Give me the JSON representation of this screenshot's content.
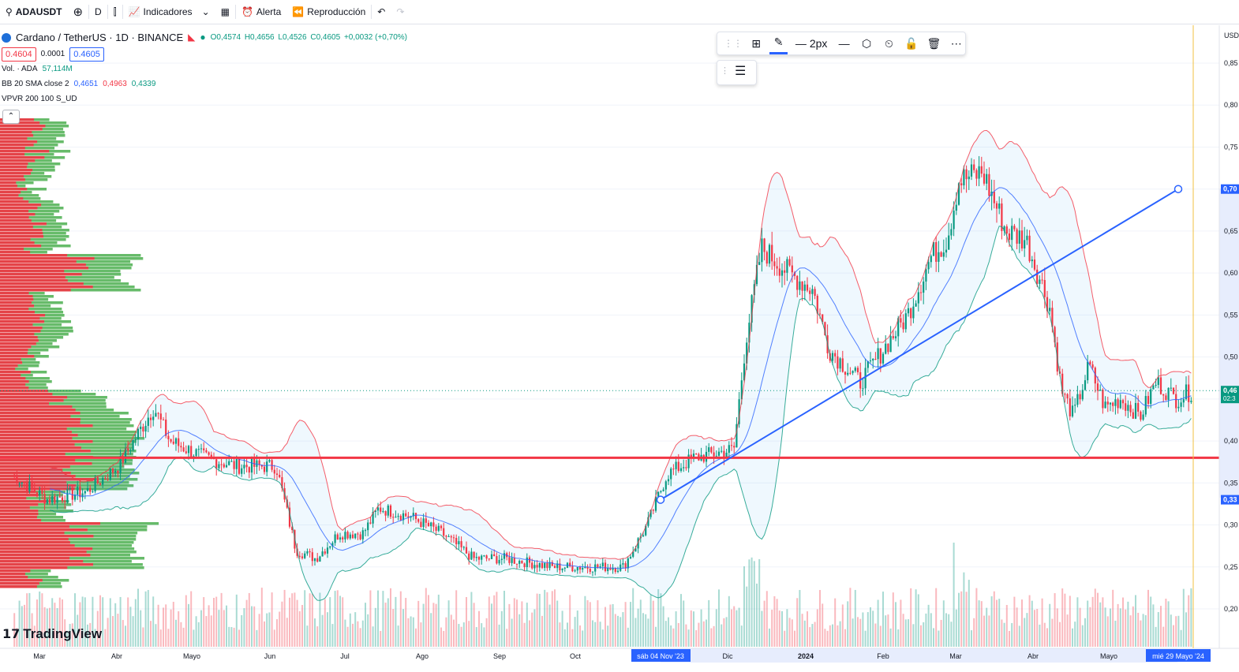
{
  "toolbar": {
    "symbol": "ADAUSDT",
    "interval": "D",
    "indicators": "Indicadores",
    "alert": "Alerta",
    "replay": "Reproducción"
  },
  "legend": {
    "title": "Cardano / TetherUS · 1D · BINANCE",
    "ohlc": {
      "o": "O0,4574",
      "h": "H0,4656",
      "l": "L0,4526",
      "c": "C0,4605",
      "chg": "+0,0032 (+0,70%)"
    },
    "bid": "0.4604",
    "spread": "0.0001",
    "ask": "0.4605",
    "vol_label": "Vol. · ADA",
    "vol_value": "57,114M",
    "bb_label": "BB 20 SMA close 2",
    "bb_basis": "0,4651",
    "bb_upper": "0,4963",
    "bb_lower": "0,4339",
    "vpvr_label": "VPVR 200 100 S_UD"
  },
  "drawing_toolbar": {
    "width_label": "2px"
  },
  "watermark": "TradingView",
  "axis": {
    "currency": "USD",
    "y_ticks": [
      "0,85",
      "0,80",
      "0,75",
      "0,70",
      "0,65",
      "0,60",
      "0,55",
      "0,50",
      "0,45",
      "0,40",
      "0,35",
      "0,30",
      "0,25",
      "0,20"
    ],
    "x_ticks": [
      "Mar",
      "Abr",
      "Mayo",
      "Jun",
      "Jul",
      "Ago",
      "Sep",
      "Oct",
      "Dic",
      "2024",
      "Feb",
      "Mar",
      "Abr",
      "Mayo"
    ],
    "x_highlight_start": "sáb 04 Nov '23",
    "x_highlight_end": "mié 29 Mayo '24",
    "price_tag_top": "0,70",
    "price_tag_last": "0,46",
    "price_tag_last_sub": "02:3",
    "price_tag_low": "0,33"
  },
  "chart_data": {
    "type": "line",
    "symbol": "ADAUSDT",
    "interval": "1D",
    "ylim": [
      0.18,
      0.87
    ],
    "x": [
      "2023-03",
      "2023-04",
      "2023-05",
      "2023-06",
      "2023-07",
      "2023-08",
      "2023-09",
      "2023-10",
      "2023-11",
      "2023-12",
      "2024-01",
      "2024-02",
      "2024-03",
      "2024-04",
      "2024-05"
    ],
    "series": [
      {
        "values": [
          0.35,
          0.38,
          0.37,
          0.29,
          0.29,
          0.26,
          0.25,
          0.27,
          0.38,
          0.62,
          0.52,
          0.58,
          0.72,
          0.48,
          0.46
        ]
      }
    ],
    "horizontal_line": 0.38,
    "trend_line": {
      "from": [
        "2023-11-04",
        0.33
      ],
      "to": [
        "2024-05-25",
        0.7
      ]
    },
    "colors": {
      "up": "#089981",
      "down": "#f23645",
      "bb_upper": "#f23645",
      "bb_lower": "#089981",
      "bb_basis": "#2962ff",
      "trend": "#2962ff",
      "level": "#f23645"
    }
  }
}
